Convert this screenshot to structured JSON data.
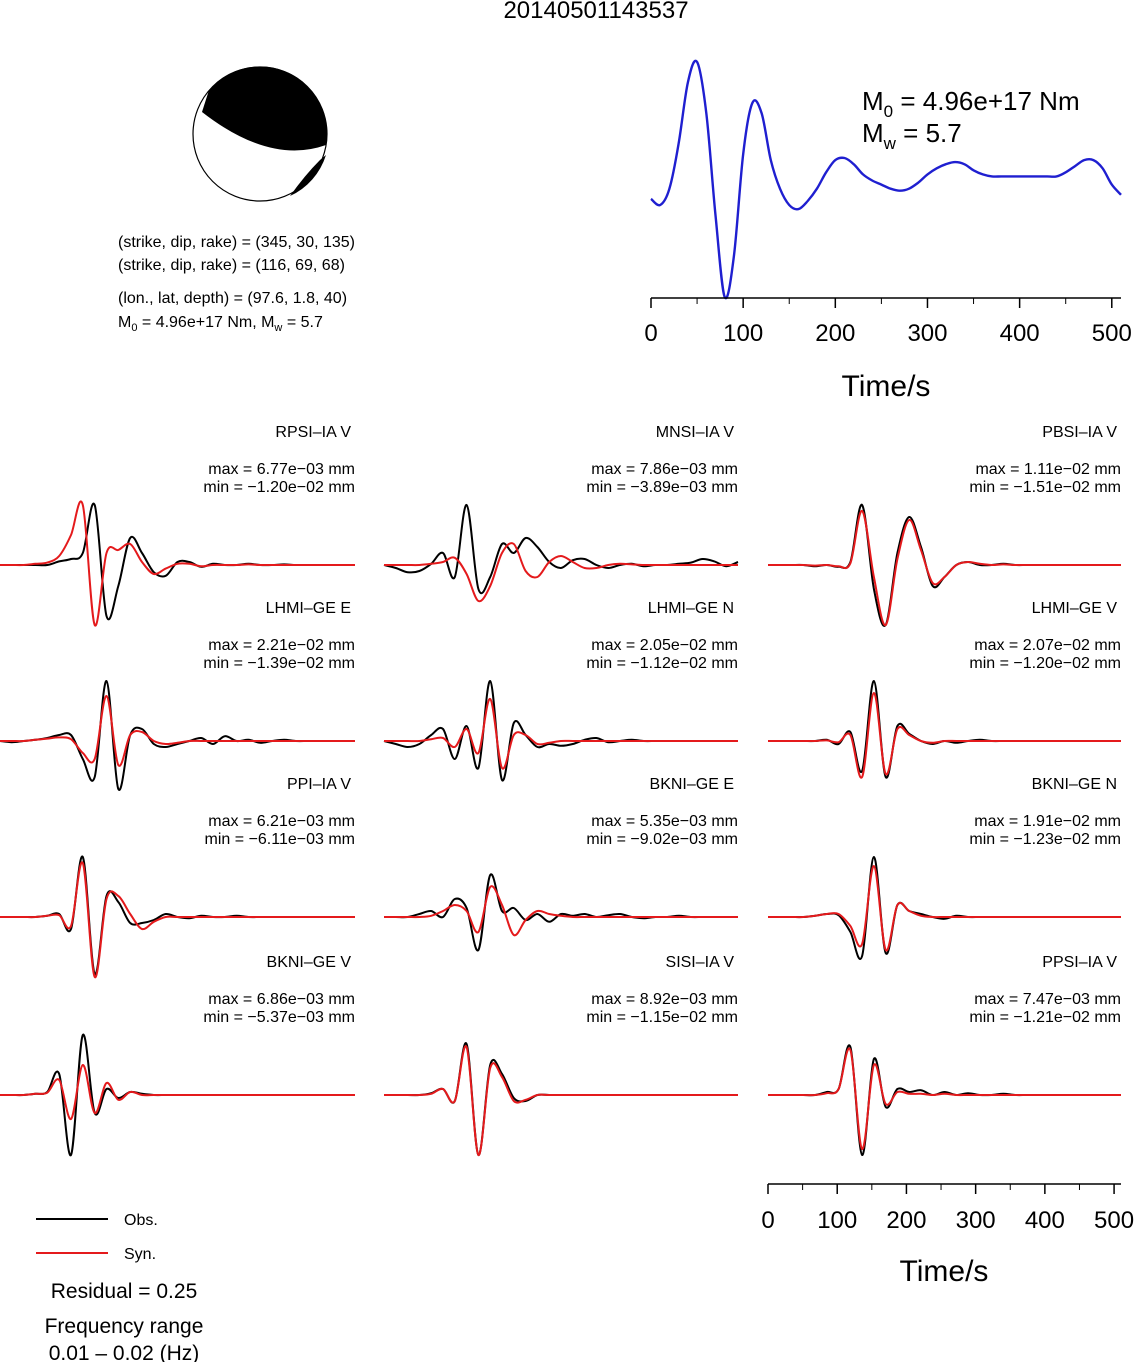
{
  "title": "20140501143537",
  "mechanism": {
    "text_lines": [
      "(strike, dip, rake) = (345, 30, 135)",
      "(strike, dip, rake) = (116, 69, 68)",
      "(lon., lat, depth) = (97.6, 1.8, 40)"
    ],
    "m0_prefix": "M",
    "m0_sub": "0",
    "m0_value": " = 4.96e+17 Nm, M",
    "mw_sub": "w",
    "mw_value": " = 5.7"
  },
  "stf": {
    "m0_label": "M",
    "m0_sub": "0",
    "m0_value": " = 4.96e+17 Nm",
    "mw_label": "M",
    "mw_sub": "w",
    "mw_value": " = 5.7",
    "xlabel": "Time/s",
    "xticks": [
      "0",
      "100",
      "200",
      "300",
      "400",
      "500"
    ]
  },
  "wave_axis": {
    "xlabel": "Time/s",
    "xticks": [
      "0",
      "100",
      "200",
      "300",
      "400",
      "500"
    ]
  },
  "legend": {
    "obs": "Obs.",
    "syn": "Syn."
  },
  "residual": "Residual = 0.25",
  "freq_line1": "Frequency range",
  "freq_line2": "0.01 – 0.02 (Hz)",
  "colors": {
    "obs": "#000000",
    "syn": "#e41a1c",
    "stf": "#1f1fd0"
  },
  "chart_data": [
    {
      "type": "line",
      "name": "source time function",
      "x": [
        0,
        10,
        20,
        30,
        40,
        50,
        60,
        70,
        80,
        90,
        100,
        110,
        120,
        130,
        140,
        150,
        160,
        170,
        180,
        190,
        200,
        210,
        220,
        230,
        240,
        250,
        260,
        270,
        280,
        290,
        300,
        310,
        320,
        330,
        340,
        350,
        360,
        370,
        380,
        390,
        400,
        410,
        420,
        430,
        440,
        450,
        460,
        470,
        480,
        490,
        500,
        510
      ],
      "y": [
        0.33,
        0.3,
        0.38,
        0.6,
        0.9,
        1.0,
        0.75,
        0.25,
        -0.15,
        0.05,
        0.55,
        0.8,
        0.75,
        0.52,
        0.38,
        0.3,
        0.28,
        0.32,
        0.38,
        0.46,
        0.52,
        0.53,
        0.5,
        0.45,
        0.42,
        0.4,
        0.38,
        0.37,
        0.38,
        0.41,
        0.45,
        0.48,
        0.5,
        0.51,
        0.5,
        0.47,
        0.45,
        0.44,
        0.44,
        0.44,
        0.44,
        0.44,
        0.44,
        0.44,
        0.44,
        0.46,
        0.49,
        0.52,
        0.52,
        0.48,
        0.4,
        0.35
      ],
      "xlim": [
        0,
        510
      ],
      "xlabel": "Time/s"
    },
    {
      "type": "line",
      "x_range": [
        0,
        510
      ],
      "xlabel": "Time/s",
      "stations": [
        {
          "name": "RPSI–IA V",
          "max": "max = 6.77e−03 mm",
          "min": "min = −1.20e−02 mm",
          "obs": [
            0,
            0,
            0,
            0,
            0,
            0.06,
            0.1,
            0.2,
            1.0,
            -0.85,
            -0.35,
            0.45,
            0.2,
            -0.12,
            -0.18,
            0.05,
            0.05,
            -0.03,
            0.02,
            0,
            0,
            0.02,
            0,
            0,
            0.01,
            0,
            0,
            0,
            0,
            0,
            0
          ],
          "syn": [
            0,
            0,
            0,
            0.02,
            0.04,
            0.15,
            0.5,
            1.0,
            -1.0,
            0.2,
            0.25,
            0.35,
            0.05,
            -0.15,
            -0.06,
            0.02,
            0.02,
            -0.02,
            0,
            0,
            0,
            0.01,
            0,
            0,
            0,
            0,
            0,
            0,
            0,
            0,
            0
          ]
        },
        {
          "name": "MNSI–IA V",
          "max": "max = 7.86e−03 mm",
          "min": "min = −3.89e−03 mm",
          "obs": [
            0,
            -0.05,
            -0.12,
            -0.1,
            0.02,
            0.2,
            -0.2,
            1.0,
            -0.4,
            -0.2,
            0.35,
            0.2,
            0.45,
            0.3,
            0.05,
            -0.05,
            0.08,
            0.1,
            0,
            -0.05,
            0,
            0.02,
            -0.02,
            0,
            0,
            0.02,
            0.04,
            0.1,
            0.06,
            -0.02,
            0.05
          ],
          "syn": [
            0,
            0,
            0,
            0,
            0.02,
            0.05,
            0.12,
            -0.15,
            -0.6,
            -0.35,
            0.2,
            0.35,
            -0.1,
            -0.2,
            0.05,
            0.15,
            0.05,
            -0.05,
            -0.05,
            0,
            0.02,
            0.01,
            0,
            0,
            0,
            0,
            0,
            0,
            0,
            0,
            0
          ]
        },
        {
          "name": "PBSI–IA V",
          "max": "max = 1.11e−02 mm",
          "min": "min = −1.51e−02 mm",
          "obs": [
            0,
            0,
            0,
            0,
            -0.02,
            0,
            -0.03,
            0.05,
            1.0,
            -0.4,
            -1.0,
            0.2,
            0.8,
            0.3,
            -0.35,
            -0.2,
            0,
            0.05,
            0,
            0,
            0.02,
            0,
            0,
            0,
            0,
            0,
            0,
            0,
            0,
            0,
            0
          ],
          "syn": [
            0,
            0,
            0,
            0,
            -0.01,
            0,
            -0.02,
            0.03,
            0.9,
            -0.2,
            -1.0,
            0.1,
            0.75,
            0.25,
            -0.3,
            -0.2,
            0,
            0.05,
            0.02,
            0,
            0.01,
            0,
            0,
            0,
            0,
            0,
            0,
            0,
            0,
            0,
            0
          ]
        },
        {
          "name": "LHMI–GE E",
          "max": "max = 2.21e−02 mm",
          "min": "min = −1.39e−02 mm",
          "obs": [
            0,
            -0.02,
            0,
            0.02,
            0.05,
            0.1,
            0.1,
            -0.3,
            -0.6,
            1.0,
            -0.8,
            0.1,
            0.2,
            -0.05,
            -0.1,
            -0.05,
            0,
            0.05,
            -0.05,
            0.08,
            0,
            0.02,
            -0.03,
            0,
            0.02,
            0,
            0,
            0,
            0,
            0,
            0
          ],
          "syn": [
            0,
            0,
            0,
            0.02,
            0.04,
            0.06,
            0.03,
            -0.2,
            -0.3,
            0.75,
            -0.4,
            0.1,
            0.15,
            0,
            -0.05,
            -0.03,
            0,
            0,
            0,
            0,
            0,
            0,
            0,
            0,
            0,
            0,
            0,
            0,
            0,
            0,
            0
          ]
        },
        {
          "name": "LHMI–GE N",
          "max": "max = 2.05e−02 mm",
          "min": "min = −1.12e−02 mm",
          "obs": [
            0,
            -0.05,
            -0.1,
            -0.05,
            0.1,
            0.2,
            -0.3,
            0.25,
            -0.45,
            1.0,
            -0.65,
            0.3,
            0.1,
            -0.1,
            -0.05,
            -0.08,
            -0.05,
            0.02,
            0.05,
            -0.02,
            0,
            0.02,
            0,
            0,
            0,
            0,
            0,
            0,
            0,
            0,
            0
          ],
          "syn": [
            0,
            0,
            0,
            0,
            0.03,
            0.05,
            -0.1,
            0.2,
            -0.2,
            0.7,
            -0.45,
            0.1,
            0.1,
            -0.05,
            -0.03,
            0,
            0,
            0,
            0,
            0,
            0,
            0,
            0,
            0,
            0,
            0,
            0,
            0,
            0,
            0,
            0
          ]
        },
        {
          "name": "LHMI–GE V",
          "max": "max = 2.07e−02 mm",
          "min": "min = −1.20e−02 mm",
          "obs": [
            0,
            0,
            0,
            0,
            0,
            0.02,
            -0.05,
            0.15,
            -0.5,
            1.0,
            -0.6,
            0.25,
            0.12,
            0,
            -0.05,
            0,
            -0.03,
            0,
            0.02,
            0,
            0,
            0,
            0,
            0,
            0,
            0,
            0,
            0,
            0,
            0,
            0
          ],
          "syn": [
            0,
            0,
            0,
            0,
            0,
            0.01,
            -0.02,
            0.1,
            -0.6,
            0.8,
            -0.55,
            0.2,
            0.1,
            0,
            -0.03,
            0,
            0,
            0,
            0,
            0,
            0,
            0,
            0,
            0,
            0,
            0,
            0,
            0,
            0,
            0,
            0
          ]
        },
        {
          "name": "PPI–IA V",
          "max": "max = 6.21e−03 mm",
          "min": "min = −6.11e−03 mm",
          "obs": [
            0,
            0,
            0,
            0,
            0.02,
            0.05,
            -0.2,
            1.0,
            -0.95,
            0.35,
            0.25,
            -0.1,
            -0.1,
            -0.05,
            0.05,
            0,
            -0.02,
            0.02,
            0,
            0,
            0.02,
            0,
            0,
            0,
            0,
            0,
            0,
            0,
            0,
            0,
            0
          ],
          "syn": [
            0,
            0,
            0,
            0,
            0.02,
            0.03,
            -0.15,
            0.9,
            -1.0,
            0.3,
            0.35,
            0.05,
            -0.2,
            -0.08,
            0,
            0,
            0,
            0,
            0,
            0,
            0,
            0,
            0,
            0,
            0,
            0,
            0,
            0,
            0,
            0,
            0
          ]
        },
        {
          "name": "BKNI–GE E",
          "max": "max = 5.35e−03 mm",
          "min": "min = −9.02e−03 mm",
          "obs": [
            0,
            0,
            0,
            0.05,
            0.1,
            0,
            0.3,
            0.15,
            -0.55,
            0.7,
            0.1,
            0.15,
            -0.05,
            0.05,
            -0.08,
            0.05,
            0.02,
            0.05,
            0,
            0.03,
            0.05,
            0,
            -0.02,
            0,
            0,
            0.02,
            0,
            0,
            0,
            0,
            0
          ],
          "syn": [
            0,
            0,
            0,
            0,
            0.02,
            0.1,
            0.2,
            0.1,
            -0.25,
            0.5,
            0.2,
            -0.3,
            -0.05,
            0.1,
            0.05,
            0.02,
            0,
            0,
            0,
            0,
            0,
            0,
            0,
            0,
            0,
            0,
            0,
            0,
            0,
            0,
            0
          ]
        },
        {
          "name": "BKNI–GE N",
          "max": "max = 1.91e−02 mm",
          "min": "min = −1.23e−02 mm",
          "obs": [
            0,
            0,
            0,
            0,
            0.02,
            0.05,
            0.03,
            -0.25,
            -0.65,
            1.0,
            -0.6,
            0.2,
            0.1,
            0.05,
            0,
            -0.03,
            0.02,
            0,
            0,
            0,
            0,
            0,
            0,
            0,
            0,
            0,
            0,
            0,
            0,
            0,
            0
          ],
          "syn": [
            0,
            0,
            0,
            0,
            0.02,
            0.05,
            0.05,
            -0.15,
            -0.45,
            0.85,
            -0.55,
            0.2,
            0.1,
            0.02,
            0,
            0,
            0,
            0,
            0,
            0,
            0,
            0,
            0,
            0,
            0,
            0,
            0,
            0,
            0,
            0,
            0
          ]
        },
        {
          "name": "BKNI–GE V",
          "max": "max = 6.86e−03 mm",
          "min": "min = −5.37e−03 mm",
          "obs": [
            0,
            0,
            0,
            0.02,
            0.05,
            0.35,
            -1.0,
            1.0,
            -0.3,
            0.1,
            -0.05,
            0.05,
            0.02,
            0,
            0,
            0,
            0,
            0,
            0,
            0,
            0,
            0,
            0,
            0,
            0,
            0,
            0,
            0,
            0,
            0,
            0
          ],
          "syn": [
            0,
            0,
            0,
            0.02,
            0.04,
            0.25,
            -0.4,
            0.5,
            -0.3,
            0.2,
            -0.08,
            0.05,
            0,
            0,
            0,
            0,
            0,
            0,
            0,
            0,
            0,
            0,
            0,
            0,
            0,
            0,
            0,
            0,
            0,
            0,
            0
          ]
        },
        {
          "name": "SISI–IA V",
          "max": "max = 8.92e−03 mm",
          "min": "min = −1.15e−02 mm",
          "obs": [
            0,
            0,
            0,
            0,
            0.03,
            0.1,
            -0.1,
            0.85,
            -1.0,
            0.5,
            0.35,
            -0.05,
            -0.1,
            0,
            0,
            0,
            0,
            0,
            0,
            0,
            0,
            0,
            0,
            0,
            0,
            0,
            0,
            0,
            0,
            0,
            0
          ],
          "syn": [
            0,
            0,
            0,
            0,
            0.02,
            0.1,
            -0.1,
            0.8,
            -1.0,
            0.45,
            0.3,
            -0.1,
            -0.08,
            0,
            0,
            0,
            0,
            0,
            0,
            0,
            0,
            0,
            0,
            0,
            0,
            0,
            0,
            0,
            0,
            0,
            0
          ]
        },
        {
          "name": "PPSI–IA V",
          "max": "max = 7.47e−03 mm",
          "min": "min = −1.21e−02 mm",
          "obs": [
            0,
            0,
            0,
            0,
            0,
            0.05,
            0.1,
            0.8,
            -1.0,
            0.6,
            -0.2,
            0.1,
            0.05,
            0.08,
            0,
            0.05,
            0,
            0.03,
            0,
            0,
            0.02,
            0,
            0,
            0,
            0,
            0,
            0,
            0,
            0,
            0,
            0
          ],
          "syn": [
            0,
            0,
            0,
            0,
            0,
            0.03,
            0.1,
            0.75,
            -0.9,
            0.5,
            -0.15,
            0.05,
            0.02,
            0.02,
            0,
            0.02,
            0,
            0,
            0,
            0,
            0,
            0,
            0,
            0,
            0,
            0,
            0,
            0,
            0,
            0,
            0
          ]
        }
      ]
    }
  ]
}
